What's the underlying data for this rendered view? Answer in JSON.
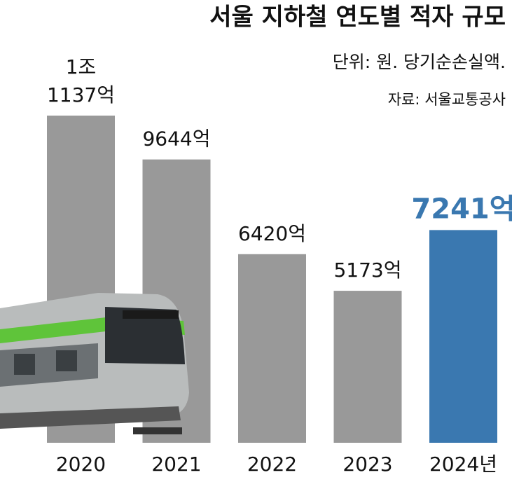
{
  "chart_data": {
    "type": "bar",
    "title": "서울 지하철 연도별 적자 규모",
    "subtitle": "단위: 원. 당기순손실액.",
    "source": "자료: 서울교통공사",
    "categories": [
      "2020",
      "2021",
      "2022",
      "2023",
      "2024년"
    ],
    "values": [
      11137,
      9644,
      6420,
      5173,
      7241
    ],
    "value_labels": [
      "1조 1137억",
      "9644억",
      "6420억",
      "5173억",
      "7241억"
    ],
    "colors": [
      "#999999",
      "#999999",
      "#999999",
      "#999999",
      "#3a78b0"
    ]
  }
}
